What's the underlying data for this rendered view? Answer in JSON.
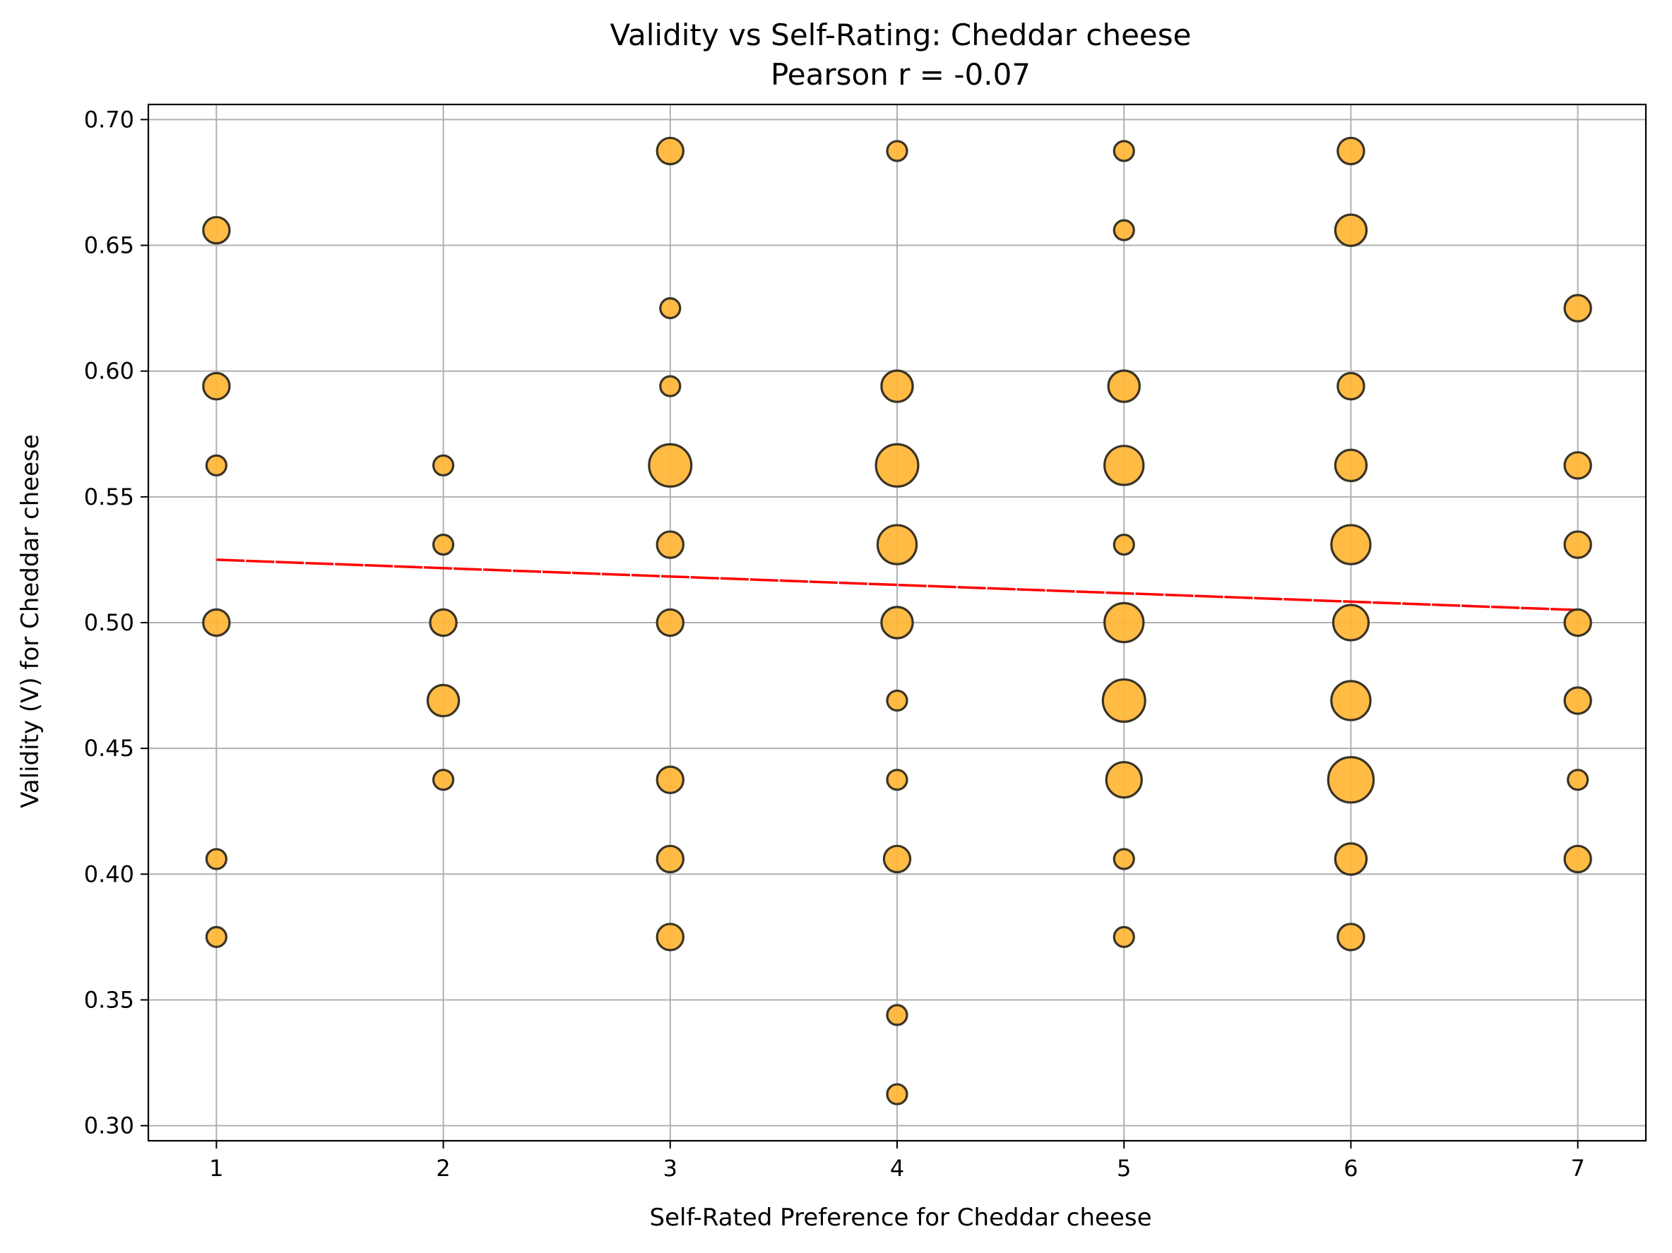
{
  "chart_data": {
    "type": "scatter",
    "title": "Validity vs Self-Rating: Cheddar cheese",
    "subtitle": "Pearson r = -0.07",
    "xlabel": "Self-Rated Preference for Cheddar cheese",
    "ylabel": "Validity (V) for Cheddar cheese",
    "xlim": [
      0.7,
      7.3
    ],
    "ylim": [
      0.294,
      0.706
    ],
    "xticks": [
      1,
      2,
      3,
      4,
      5,
      6,
      7
    ],
    "yticks": [
      0.3,
      0.35,
      0.4,
      0.45,
      0.5,
      0.55,
      0.6,
      0.65,
      0.7
    ],
    "xtick_labels": [
      "1",
      "2",
      "3",
      "4",
      "5",
      "6",
      "7"
    ],
    "ytick_labels": [
      "0.30",
      "0.35",
      "0.40",
      "0.45",
      "0.50",
      "0.55",
      "0.60",
      "0.65",
      "0.70"
    ],
    "grid": true,
    "colors": {
      "point_fill": "#ffb534",
      "point_edge": "#3a3326",
      "trend": "#ff0000"
    },
    "note_size": "point area encodes count of respondents",
    "points": [
      {
        "x": 1,
        "y": 0.656,
        "n": 2
      },
      {
        "x": 1,
        "y": 0.594,
        "n": 2
      },
      {
        "x": 1,
        "y": 0.5625,
        "n": 1
      },
      {
        "x": 1,
        "y": 0.5,
        "n": 2
      },
      {
        "x": 1,
        "y": 0.406,
        "n": 1
      },
      {
        "x": 1,
        "y": 0.375,
        "n": 1
      },
      {
        "x": 2,
        "y": 0.5625,
        "n": 1
      },
      {
        "x": 2,
        "y": 0.531,
        "n": 1
      },
      {
        "x": 2,
        "y": 0.5,
        "n": 2
      },
      {
        "x": 2,
        "y": 0.469,
        "n": 3
      },
      {
        "x": 2,
        "y": 0.4375,
        "n": 1
      },
      {
        "x": 3,
        "y": 0.6875,
        "n": 2
      },
      {
        "x": 3,
        "y": 0.625,
        "n": 1
      },
      {
        "x": 3,
        "y": 0.594,
        "n": 1
      },
      {
        "x": 3,
        "y": 0.5625,
        "n": 6
      },
      {
        "x": 3,
        "y": 0.531,
        "n": 2
      },
      {
        "x": 3,
        "y": 0.5,
        "n": 2
      },
      {
        "x": 3,
        "y": 0.4375,
        "n": 2
      },
      {
        "x": 3,
        "y": 0.406,
        "n": 2
      },
      {
        "x": 3,
        "y": 0.375,
        "n": 2
      },
      {
        "x": 4,
        "y": 0.6875,
        "n": 1
      },
      {
        "x": 4,
        "y": 0.594,
        "n": 3
      },
      {
        "x": 4,
        "y": 0.5625,
        "n": 6
      },
      {
        "x": 4,
        "y": 0.531,
        "n": 5
      },
      {
        "x": 4,
        "y": 0.5,
        "n": 3
      },
      {
        "x": 4,
        "y": 0.469,
        "n": 1
      },
      {
        "x": 4,
        "y": 0.4375,
        "n": 1
      },
      {
        "x": 4,
        "y": 0.406,
        "n": 2
      },
      {
        "x": 4,
        "y": 0.344,
        "n": 1
      },
      {
        "x": 4,
        "y": 0.3125,
        "n": 1
      },
      {
        "x": 5,
        "y": 0.6875,
        "n": 1
      },
      {
        "x": 5,
        "y": 0.656,
        "n": 1
      },
      {
        "x": 5,
        "y": 0.594,
        "n": 3
      },
      {
        "x": 5,
        "y": 0.5625,
        "n": 5
      },
      {
        "x": 5,
        "y": 0.531,
        "n": 1
      },
      {
        "x": 5,
        "y": 0.5,
        "n": 5
      },
      {
        "x": 5,
        "y": 0.469,
        "n": 6
      },
      {
        "x": 5,
        "y": 0.4375,
        "n": 4
      },
      {
        "x": 5,
        "y": 0.406,
        "n": 1
      },
      {
        "x": 5,
        "y": 0.375,
        "n": 1
      },
      {
        "x": 6,
        "y": 0.6875,
        "n": 2
      },
      {
        "x": 6,
        "y": 0.656,
        "n": 3
      },
      {
        "x": 6,
        "y": 0.594,
        "n": 2
      },
      {
        "x": 6,
        "y": 0.5625,
        "n": 3
      },
      {
        "x": 6,
        "y": 0.531,
        "n": 5
      },
      {
        "x": 6,
        "y": 0.5,
        "n": 4
      },
      {
        "x": 6,
        "y": 0.469,
        "n": 5
      },
      {
        "x": 6,
        "y": 0.4375,
        "n": 7
      },
      {
        "x": 6,
        "y": 0.406,
        "n": 3
      },
      {
        "x": 6,
        "y": 0.375,
        "n": 2
      },
      {
        "x": 7,
        "y": 0.625,
        "n": 2
      },
      {
        "x": 7,
        "y": 0.5625,
        "n": 2
      },
      {
        "x": 7,
        "y": 0.531,
        "n": 2
      },
      {
        "x": 7,
        "y": 0.5,
        "n": 2
      },
      {
        "x": 7,
        "y": 0.469,
        "n": 2
      },
      {
        "x": 7,
        "y": 0.4375,
        "n": 1
      },
      {
        "x": 7,
        "y": 0.406,
        "n": 2
      }
    ],
    "trendline": {
      "x": [
        1,
        7
      ],
      "y": [
        0.525,
        0.505
      ]
    }
  }
}
